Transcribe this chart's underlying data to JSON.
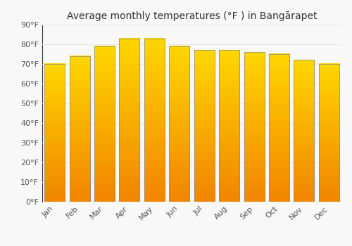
{
  "title": "Average monthly temperatures (°F ) in Bangārapet",
  "months": [
    "Jan",
    "Feb",
    "Mar",
    "Apr",
    "May",
    "Jun",
    "Jul",
    "Aug",
    "Sep",
    "Oct",
    "Nov",
    "Dec"
  ],
  "values": [
    70,
    74,
    79,
    83,
    83,
    79,
    77,
    77,
    76,
    75,
    72,
    70
  ],
  "bar_color_top": "#FFD700",
  "bar_color_bottom": "#F28500",
  "bar_edge_color": "#888888",
  "background_color": "#f8f8f8",
  "ylim": [
    0,
    90
  ],
  "yticks": [
    0,
    10,
    20,
    30,
    40,
    50,
    60,
    70,
    80,
    90
  ],
  "ytick_labels": [
    "0°F",
    "10°F",
    "20°F",
    "30°F",
    "40°F",
    "50°F",
    "60°F",
    "70°F",
    "80°F",
    "90°F"
  ],
  "title_fontsize": 10,
  "tick_fontsize": 8,
  "grid_color": "#e8e8e8",
  "bar_width": 0.82
}
